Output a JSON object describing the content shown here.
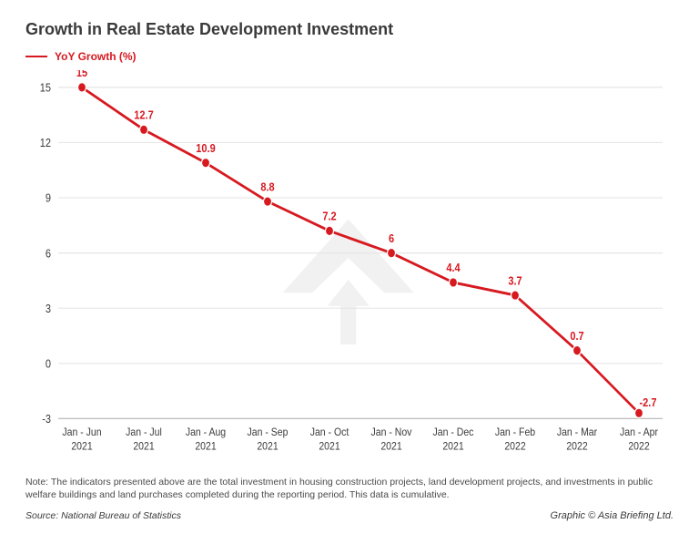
{
  "chart": {
    "type": "line",
    "title": "Growth in Real Estate Development Investment",
    "legend": {
      "label": "YoY Growth (%)",
      "color": "#d71920"
    },
    "categories": [
      "Jan - Jun 2021",
      "Jan - Jul 2021",
      "Jan - Aug 2021",
      "Jan - Sep 2021",
      "Jan - Oct 2021",
      "Jan - Nov 2021",
      "Jan - Dec 2021",
      "Jan - Feb 2022",
      "Jan - Mar 2022",
      "Jan - Apr 2022"
    ],
    "values": [
      15,
      12.7,
      10.9,
      8.8,
      7.2,
      6,
      4.4,
      3.7,
      0.7,
      -2.7
    ],
    "line_color": "#d71920",
    "marker_color": "#d71920",
    "marker_radius": 4.5,
    "line_width": 2.5,
    "label_color": "#d71920",
    "label_fontsize": 11,
    "ylim": [
      -3,
      15
    ],
    "yticks": [
      -3,
      0,
      3,
      6,
      9,
      12,
      15
    ],
    "grid_color": "#e6e6e6",
    "baseline_color": "#bdbdbd",
    "background_color": "#ffffff",
    "title_fontsize": 18,
    "title_color": "#3a3a3a",
    "font_family": "Arial"
  },
  "note": "Note: The indicators presented above are the total investment in housing construction projects, land development projects, and investments in public welfare buildings and land purchases completed during the reporting period. This data is cumulative.",
  "source": "Source: National Bureau of Statistics",
  "credit": "Graphic © Asia Briefing Ltd."
}
